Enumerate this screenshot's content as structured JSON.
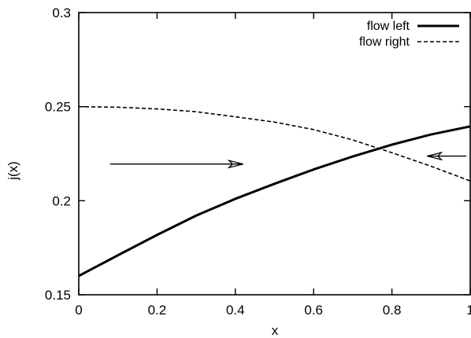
{
  "chart_data": {
    "type": "line",
    "title": "",
    "xlabel": "x",
    "ylabel": "j(x)",
    "xlim": [
      0,
      1
    ],
    "ylim": [
      0.15,
      0.3
    ],
    "xticks": [
      0,
      0.2,
      0.4,
      0.6,
      0.8,
      1
    ],
    "xtick_labels": [
      "0",
      "0.2",
      "0.4",
      "0.6",
      "0.8",
      "1"
    ],
    "yticks": [
      0.15,
      0.2,
      0.25,
      0.3
    ],
    "ytick_labels": [
      "0.15",
      "0.2",
      "0.25",
      "0.3"
    ],
    "grid": false,
    "legend_position": "top-right",
    "series": [
      {
        "name": "flow left",
        "style": "solid",
        "x": [
          0,
          0.1,
          0.2,
          0.3,
          0.4,
          0.5,
          0.6,
          0.7,
          0.8,
          0.9,
          1.0
        ],
        "y": [
          0.16,
          0.171,
          0.1818,
          0.1921,
          0.201,
          0.209,
          0.2166,
          0.2235,
          0.2298,
          0.2352,
          0.2395
        ]
      },
      {
        "name": "flow right",
        "style": "dashed",
        "x": [
          0,
          0.1,
          0.2,
          0.3,
          0.4,
          0.5,
          0.6,
          0.7,
          0.8,
          0.9,
          1.0
        ],
        "y": [
          0.25,
          0.2497,
          0.2488,
          0.2473,
          0.2446,
          0.2418,
          0.2378,
          0.2323,
          0.2255,
          0.2183,
          0.2105
        ]
      }
    ],
    "annotations": [
      {
        "type": "arrow",
        "direction": "right",
        "from": [
          0.08,
          0.2195
        ],
        "to": [
          0.42,
          0.2195
        ]
      },
      {
        "type": "arrow",
        "direction": "left",
        "from": [
          0.99,
          0.2237
        ],
        "to": [
          0.89,
          0.2237
        ]
      }
    ]
  }
}
